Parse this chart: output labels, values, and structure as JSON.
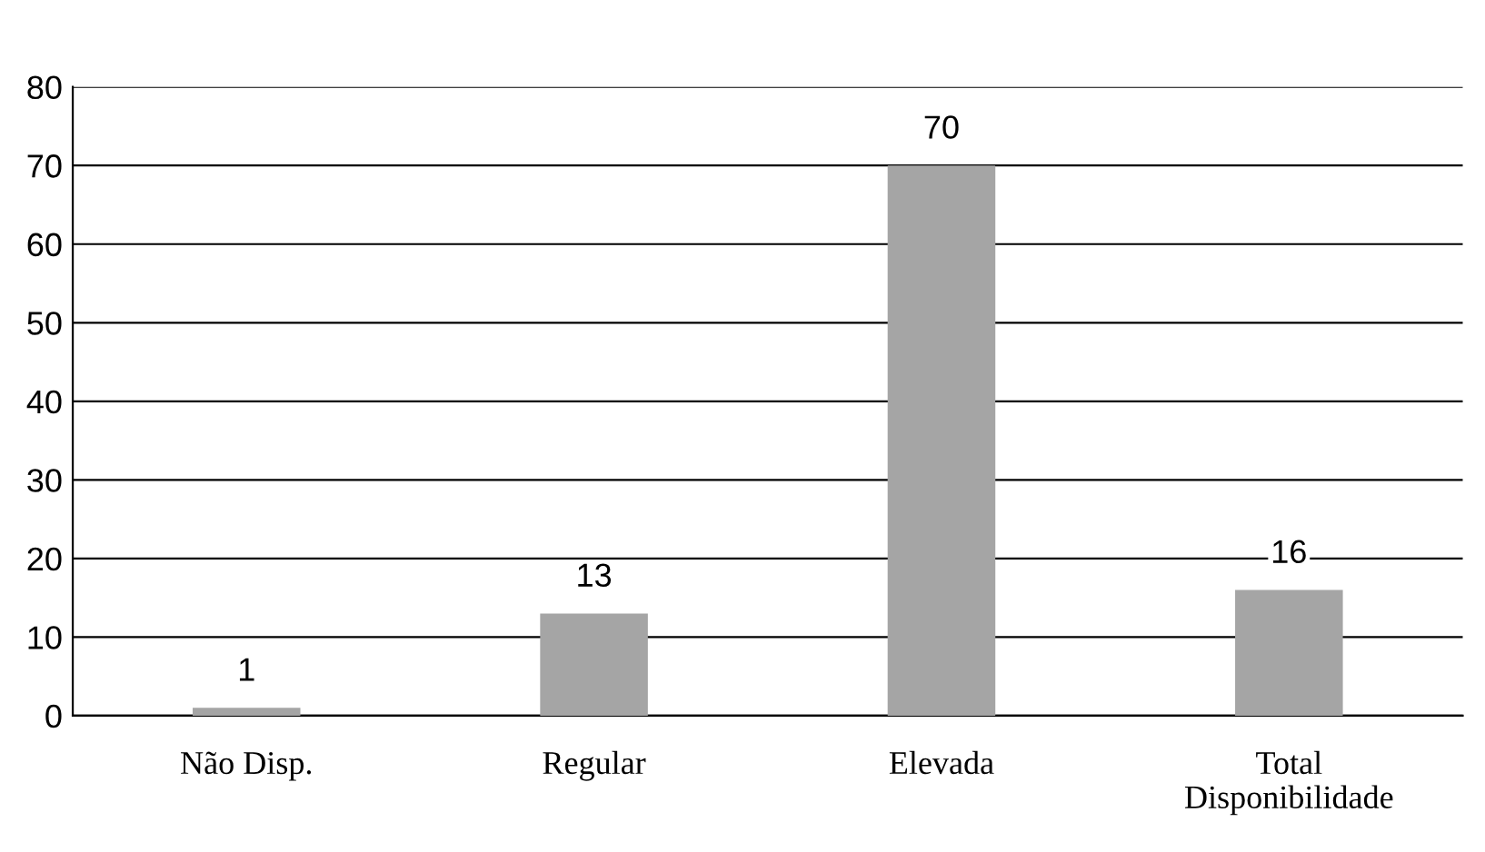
{
  "chart_data": {
    "type": "bar",
    "categories": [
      "Não Disp.",
      "Regular",
      "Elevada",
      "Total\nDisponibilidade"
    ],
    "values": [
      1,
      13,
      70,
      16
    ],
    "color": "#a5a5a5",
    "ylim": [
      0,
      80
    ],
    "yticks": [
      0,
      10,
      20,
      30,
      40,
      50,
      60,
      70,
      80
    ],
    "grid": "y",
    "data_labels": true
  }
}
